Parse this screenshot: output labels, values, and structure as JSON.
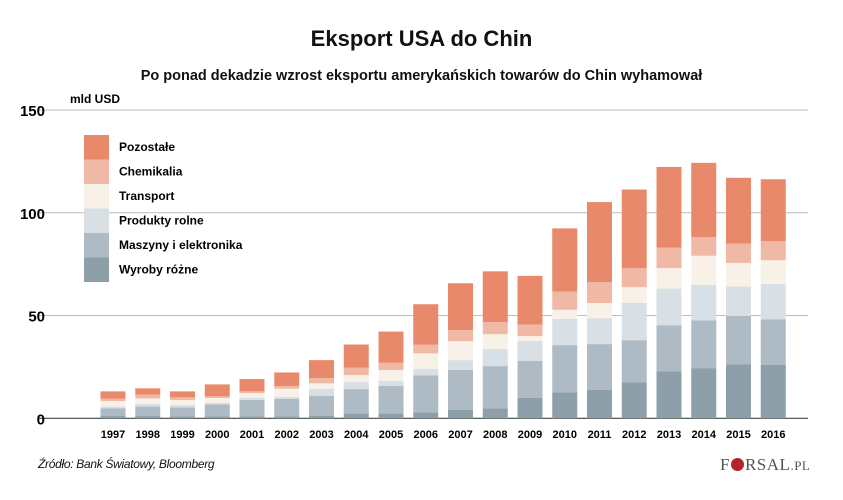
{
  "title": "Eksport USA do Chin",
  "subtitle": "Po ponad dekadzie wzrost eksportu amerykańskich towarów do Chin wyhamował",
  "source": "Źródło: Bank Światowy, Bloomberg",
  "logo": "FORSAL.PL",
  "chart_data": {
    "type": "bar",
    "stacked": true,
    "ylabel": "mld USD",
    "ylim": [
      0,
      150
    ],
    "yticks": [
      "0",
      "50",
      "100",
      "150"
    ],
    "grid": true,
    "legend_position": "top-left",
    "categories": [
      "1997",
      "1998",
      "1999",
      "2000",
      "2001",
      "2002",
      "2003",
      "2004",
      "2005",
      "2006",
      "2007",
      "2008",
      "2009",
      "2010",
      "2011",
      "2012",
      "2013",
      "2014",
      "2015",
      "2016"
    ],
    "series": [
      {
        "name": "Wyroby różne",
        "color": "#8d9fa9",
        "values": [
          1.1,
          1.1,
          1.0,
          1.0,
          1.0,
          1.0,
          1.3,
          2.3,
          2.3,
          2.8,
          4.2,
          4.9,
          9.9,
          12.6,
          13.8,
          17.5,
          22.8,
          24.4,
          26.2,
          26.1
        ]
      },
      {
        "name": "Maszyny i elektronika",
        "color": "#aebbc4",
        "values": [
          3.8,
          4.6,
          4.3,
          5.8,
          7.9,
          8.5,
          9.7,
          11.9,
          13.4,
          18.1,
          19.3,
          20.5,
          18.1,
          23.0,
          22.3,
          20.5,
          22.5,
          23.2,
          23.6,
          22.1
        ]
      },
      {
        "name": "Produkty rolne",
        "color": "#d8dfe5",
        "values": [
          0.8,
          1.3,
          1.2,
          0.8,
          1.1,
          1.0,
          3.4,
          3.4,
          2.6,
          3.2,
          4.8,
          8.3,
          9.7,
          12.8,
          12.6,
          18.1,
          17.8,
          17.4,
          14.4,
          17.2
        ]
      },
      {
        "name": "Transport",
        "color": "#f8f1e8",
        "values": [
          2.7,
          2.7,
          2.4,
          2.3,
          2.3,
          3.9,
          2.6,
          3.4,
          5.2,
          7.5,
          9.2,
          7.2,
          2.3,
          4.4,
          7.4,
          7.7,
          10.0,
          14.1,
          11.4,
          11.5
        ]
      },
      {
        "name": "Chemikalia",
        "color": "#f0b9a5",
        "values": [
          1.1,
          1.8,
          1.3,
          0.8,
          0.8,
          1.3,
          2.6,
          3.6,
          3.5,
          4.2,
          5.4,
          5.9,
          5.6,
          8.9,
          10.1,
          9.2,
          9.9,
          9.1,
          9.4,
          9.3
        ]
      },
      {
        "name": "Pozostałe",
        "color": "#e8896b",
        "values": [
          3.6,
          3.1,
          2.9,
          5.8,
          6.0,
          6.6,
          8.7,
          11.3,
          15.2,
          19.7,
          22.8,
          24.7,
          23.7,
          30.7,
          39.0,
          38.3,
          39.3,
          36.1,
          32.0,
          30.1
        ]
      }
    ]
  }
}
